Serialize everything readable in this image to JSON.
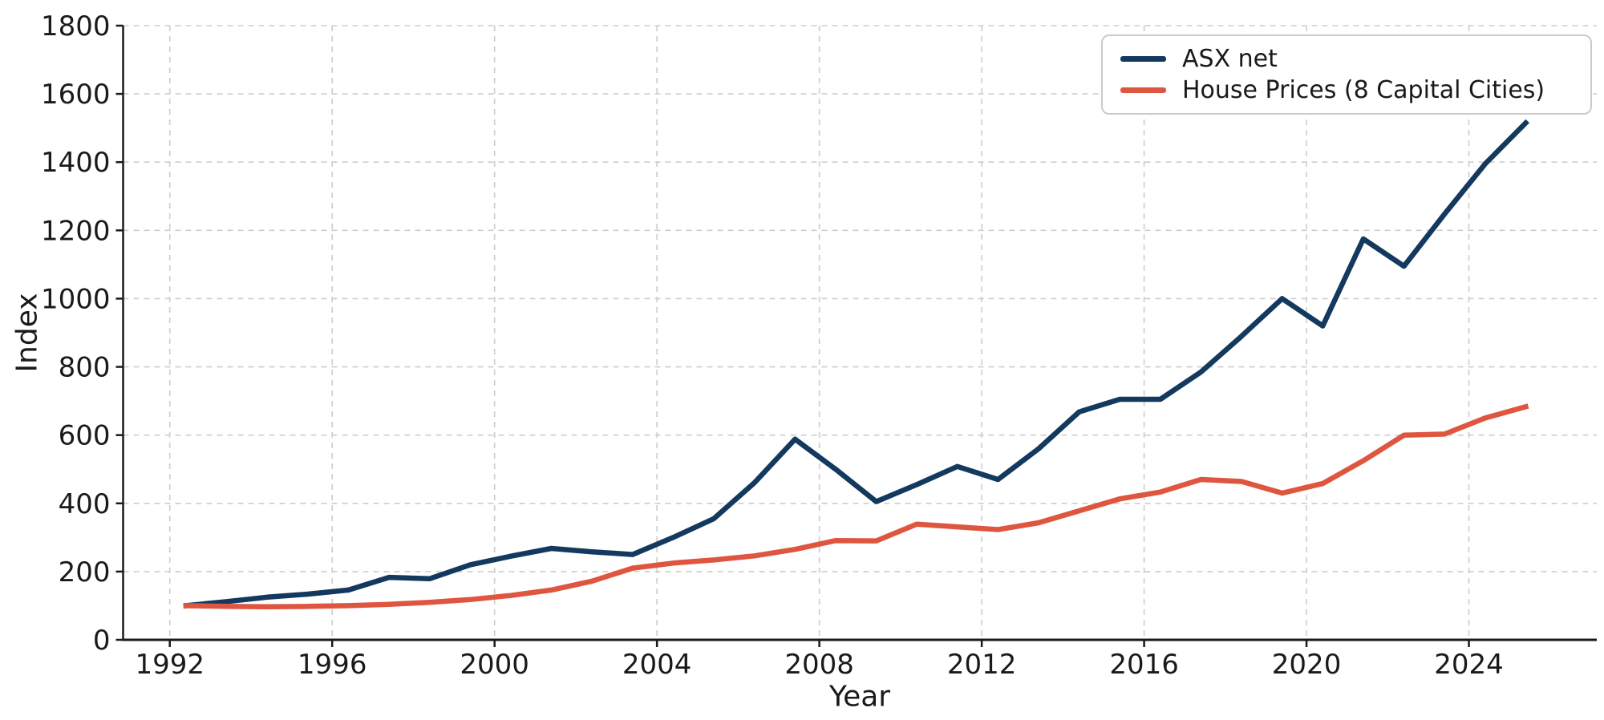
{
  "figure": {
    "title": "",
    "xlabel": "Year",
    "ylabel": "Index",
    "legend": [
      {
        "id": "asx",
        "label": "ASX net",
        "color": "#14395e"
      },
      {
        "id": "house",
        "label": "House Prices (8 Capital Cities)",
        "color": "#df5640"
      }
    ]
  },
  "chart_data": {
    "type": "line",
    "title": "",
    "xlabel": "Year",
    "ylabel": "Index",
    "x_years": [
      1992,
      1993,
      1994,
      1995,
      1996,
      1997,
      1998,
      1999,
      2000,
      2001,
      2002,
      2003,
      2004,
      2005,
      2006,
      2007,
      2008,
      2009,
      2010,
      2011,
      2012,
      2013,
      2014,
      2015,
      2016,
      2017,
      2018,
      2019,
      2020,
      2021,
      2022,
      2023,
      2024,
      2025
    ],
    "x_point_offset": 0.4,
    "series": [
      {
        "name": "ASX net",
        "color": "#14395e",
        "values": [
          100,
          112,
          125,
          134,
          146,
          183,
          179,
          220,
          245,
          268,
          258,
          250,
          300,
          355,
          460,
          588,
          500,
          405,
          455,
          508,
          470,
          560,
          668,
          705,
          705,
          785,
          890,
          1000,
          920,
          1175,
          1095,
          1248,
          1395,
          1515
        ]
      },
      {
        "name": "House Prices (8 Capital Cities)",
        "color": "#df5640",
        "values": [
          100,
          98,
          97,
          98,
          100,
          104,
          110,
          118,
          130,
          146,
          172,
          210,
          225,
          234,
          246,
          265,
          291,
          290,
          339,
          331,
          323,
          343,
          378,
          413,
          433,
          470,
          464,
          430,
          458,
          525,
          600,
          603,
          650,
          683
        ]
      }
    ],
    "xticks": [
      1992,
      1996,
      2000,
      2004,
      2008,
      2012,
      2016,
      2020,
      2024
    ],
    "yticks": [
      0,
      200,
      400,
      600,
      800,
      1000,
      1200,
      1400,
      1600,
      1800
    ],
    "xlim": [
      1990.85,
      2027.15
    ],
    "ylim": [
      0,
      1800
    ],
    "grid": true,
    "grid_color": "#cdcdcd",
    "axis_color": "#1a1a1a",
    "background": "#ffffff",
    "line_width": 6.5,
    "legend_position": "upper right"
  }
}
